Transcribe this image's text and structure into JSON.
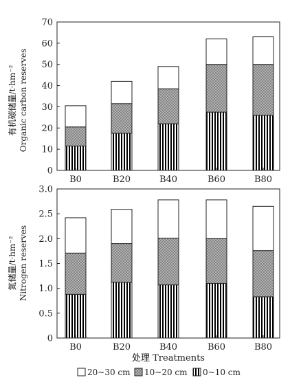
{
  "chart_data": [
    {
      "type": "bar",
      "stacked": true,
      "categories": [
        "B0",
        "B20",
        "B40",
        "B60",
        "B80"
      ],
      "series": [
        {
          "name": "0~10 cm",
          "pattern": "vertical-stripes",
          "values": [
            11.5,
            17.5,
            22,
            27.5,
            26
          ]
        },
        {
          "name": "10~20 cm",
          "pattern": "crosshatch-gray",
          "values": [
            9,
            14,
            16.5,
            22.5,
            24
          ]
        },
        {
          "name": "20~30 cm",
          "pattern": "white",
          "values": [
            10,
            10.5,
            10.5,
            12,
            13
          ]
        }
      ],
      "ylabel_cn": "有机碳储量/t·hm⁻²",
      "ylabel_en": "Organic carbon reserves",
      "ylim": [
        0,
        70
      ],
      "yticks": [
        0,
        10,
        20,
        30,
        40,
        50,
        60,
        70
      ],
      "ytick_labels": [
        "0",
        "10",
        "20",
        "30",
        "40",
        "50",
        "60",
        "70"
      ],
      "grid": false
    },
    {
      "type": "bar",
      "stacked": true,
      "categories": [
        "B0",
        "B20",
        "B40",
        "B60",
        "B80"
      ],
      "series": [
        {
          "name": "0~10 cm",
          "pattern": "vertical-stripes",
          "values": [
            0.88,
            1.12,
            1.07,
            1.1,
            0.83
          ]
        },
        {
          "name": "10~20 cm",
          "pattern": "crosshatch-gray",
          "values": [
            0.83,
            0.78,
            0.94,
            0.9,
            0.93
          ]
        },
        {
          "name": "20~30 cm",
          "pattern": "white",
          "values": [
            0.71,
            0.69,
            0.77,
            0.78,
            0.89
          ]
        }
      ],
      "ylabel_cn": "氮储量/t·hm⁻²",
      "ylabel_en": "Nitrogen reserves",
      "ylim": [
        0,
        3.0
      ],
      "yticks": [
        0,
        0.5,
        1.0,
        1.5,
        2.0,
        2.5,
        3.0
      ],
      "ytick_labels": [
        "0",
        "0.5",
        "1.0",
        "1.5",
        "2.0",
        "2.5",
        "3.0"
      ],
      "xlabel": "处理 Treatments",
      "grid": false
    }
  ],
  "legend": [
    {
      "label": "20~30 cm",
      "pattern": "white"
    },
    {
      "label": "10~20 cm",
      "pattern": "crosshatch-gray"
    },
    {
      "label": "0~10 cm",
      "pattern": "vertical-stripes"
    }
  ]
}
